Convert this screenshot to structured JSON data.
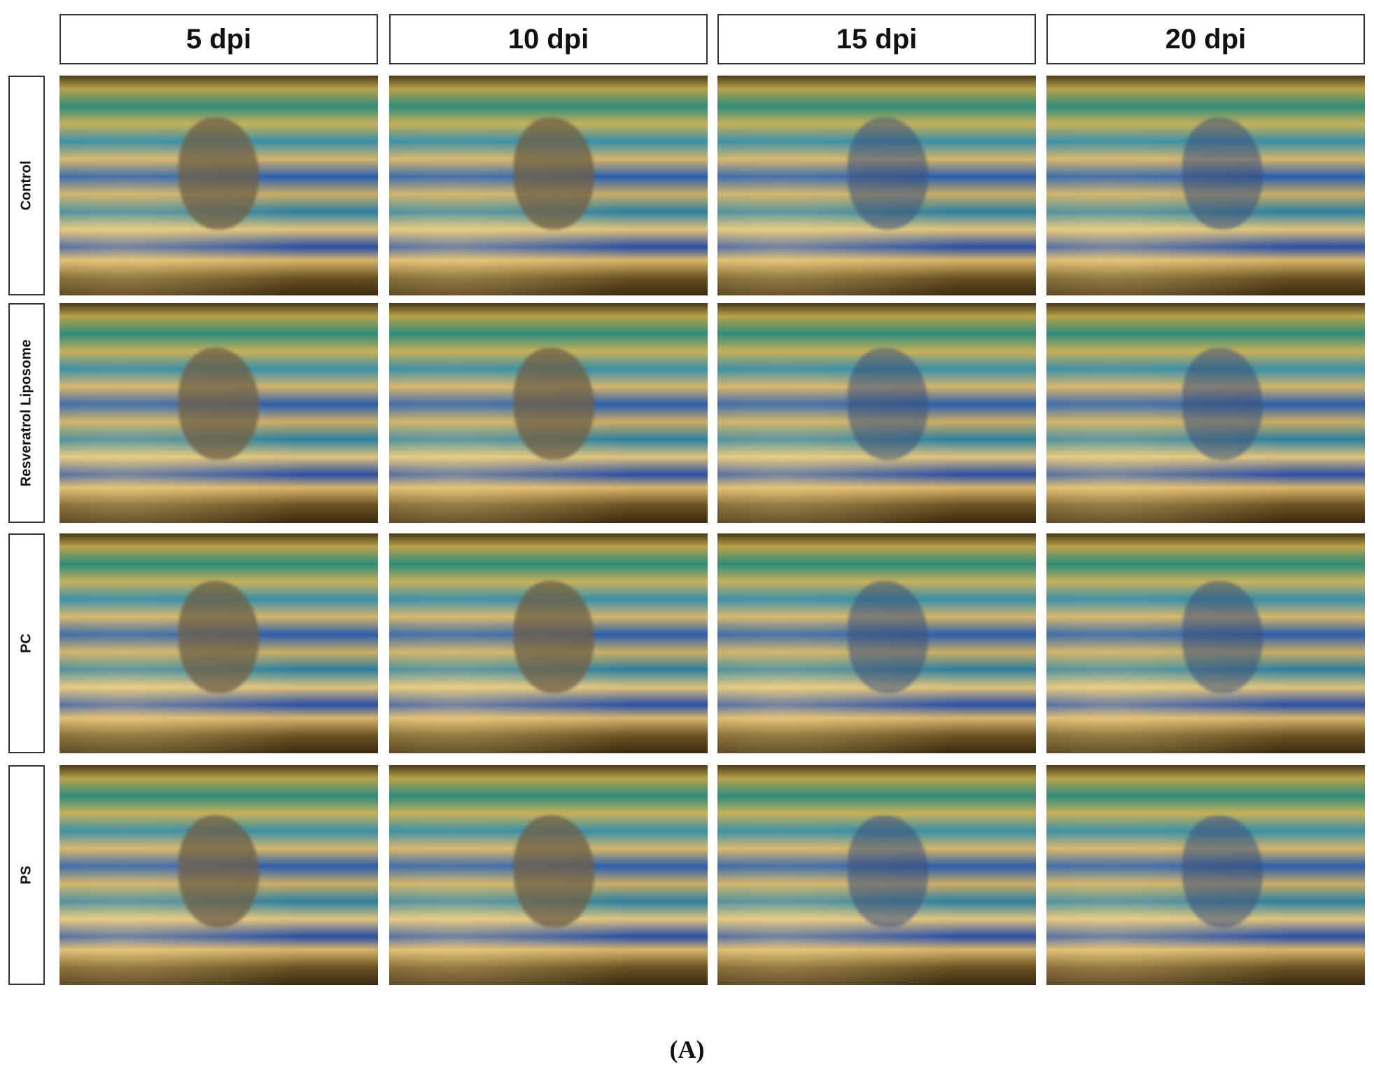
{
  "columns": [
    "5 dpi",
    "10 dpi",
    "15 dpi",
    "20 dpi"
  ],
  "rows": [
    "Control",
    "Resveratrol Liposome",
    "PC",
    "PS"
  ],
  "caption": "(A)"
}
